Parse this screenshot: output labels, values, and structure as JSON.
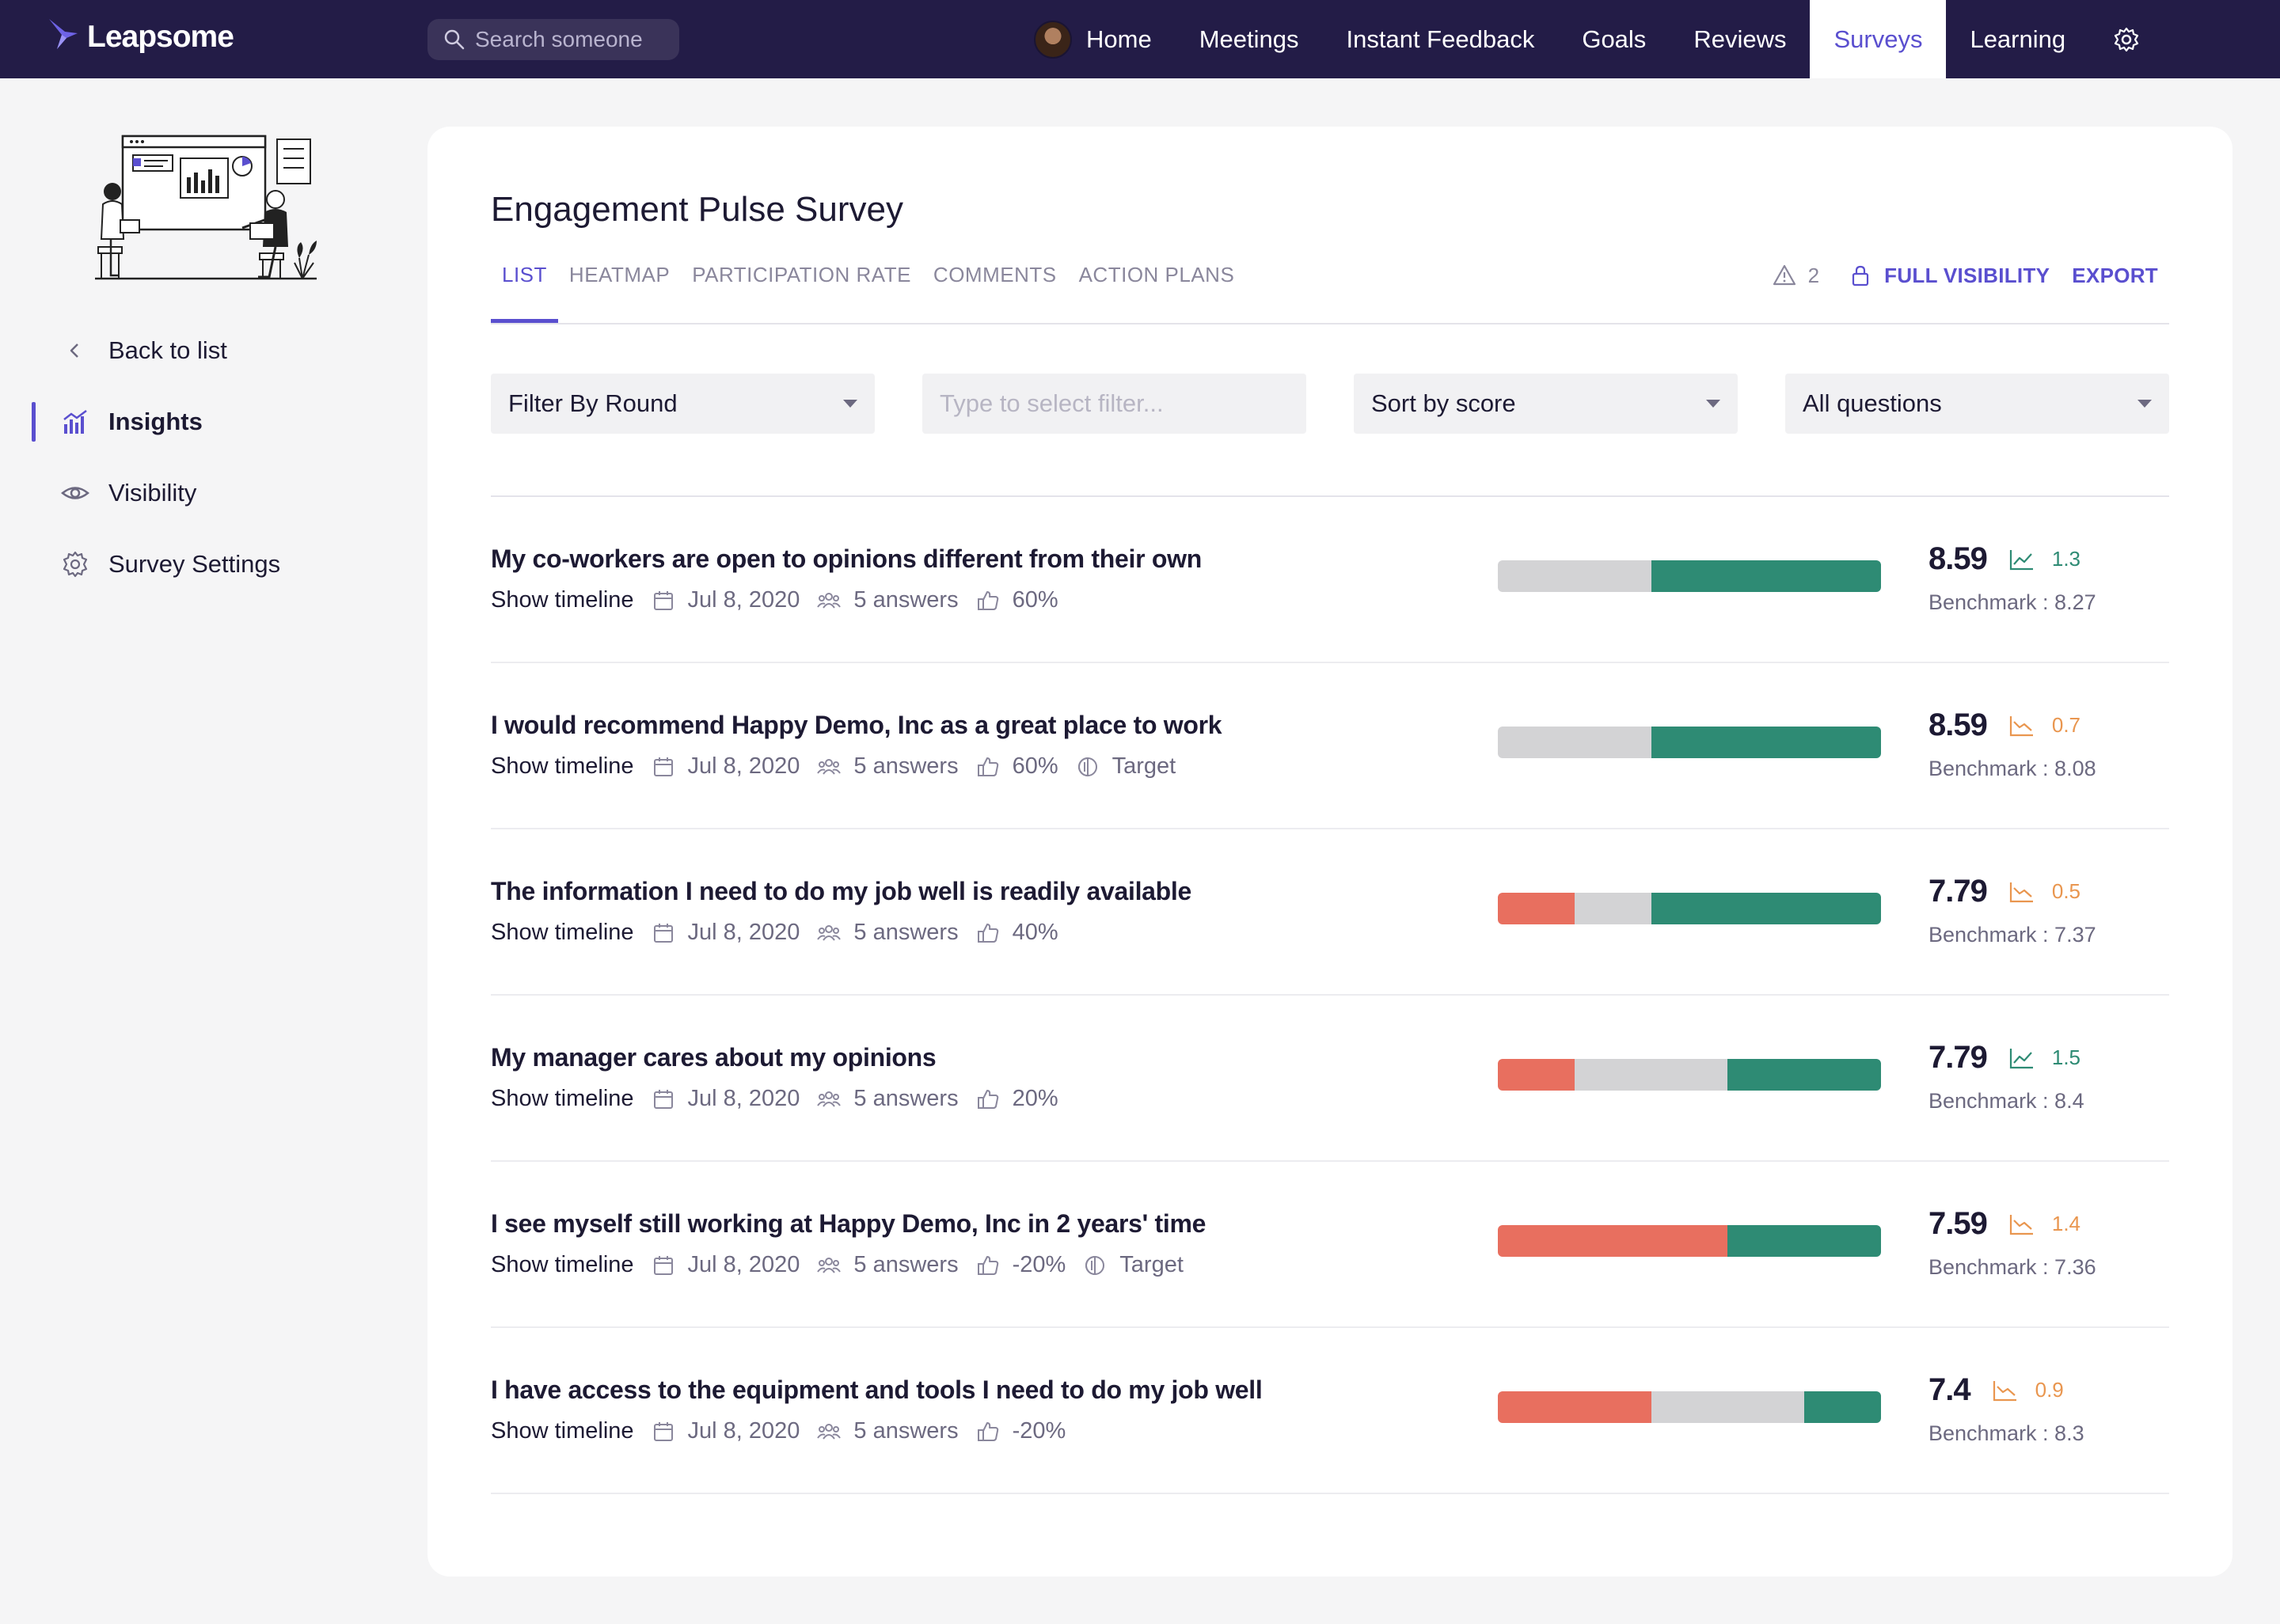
{
  "app": {
    "name": "Leapsome"
  },
  "search": {
    "placeholder": "Search someone"
  },
  "nav": {
    "items": [
      {
        "label": "Home",
        "active": false
      },
      {
        "label": "Meetings",
        "active": false
      },
      {
        "label": "Instant Feedback",
        "active": false
      },
      {
        "label": "Goals",
        "active": false
      },
      {
        "label": "Reviews",
        "active": false
      },
      {
        "label": "Surveys",
        "active": true
      },
      {
        "label": "Learning",
        "active": false
      }
    ]
  },
  "sidebar": {
    "items": [
      {
        "label": "Back to list",
        "icon": "chevron-left-icon"
      },
      {
        "label": "Insights",
        "icon": "chart-icon",
        "active": true
      },
      {
        "label": "Visibility",
        "icon": "eye-icon"
      },
      {
        "label": "Survey Settings",
        "icon": "gear-icon"
      }
    ]
  },
  "survey": {
    "title": "Engagement Pulse Survey",
    "tabs": [
      "LIST",
      "HEATMAP",
      "PARTICIPATION RATE",
      "COMMENTS",
      "ACTION PLANS"
    ],
    "active_tab": "LIST",
    "warnings": "2",
    "visibility_label": "FULL VISIBILITY",
    "export_label": "EXPORT"
  },
  "filters": {
    "round": "Filter By Round",
    "filter_placeholder": "Type to select filter...",
    "sort": "Sort by score",
    "questions": "All questions"
  },
  "questions": [
    {
      "title": "My co-workers are open to opinions different from their own",
      "show_timeline": "Show timeline",
      "date": "Jul 8, 2020",
      "answers": "5 answers",
      "favorable": "60%",
      "target": null,
      "distribution": {
        "negative": 0,
        "neutral": 40,
        "positive": 60
      },
      "score": "8.59",
      "trend": "up",
      "delta": "1.3",
      "benchmark": "Benchmark : 8.27"
    },
    {
      "title": "I would recommend Happy Demo, Inc as a great place to work",
      "show_timeline": "Show timeline",
      "date": "Jul 8, 2020",
      "answers": "5 answers",
      "favorable": "60%",
      "target": "Target",
      "distribution": {
        "negative": 0,
        "neutral": 40,
        "positive": 60
      },
      "score": "8.59",
      "trend": "down",
      "delta": "0.7",
      "benchmark": "Benchmark : 8.08"
    },
    {
      "title": "The information I need to do my job well is readily available",
      "show_timeline": "Show timeline",
      "date": "Jul 8, 2020",
      "answers": "5 answers",
      "favorable": "40%",
      "target": null,
      "distribution": {
        "negative": 20,
        "neutral": 20,
        "positive": 60
      },
      "score": "7.79",
      "trend": "down",
      "delta": "0.5",
      "benchmark": "Benchmark : 7.37"
    },
    {
      "title": "My manager cares about my opinions",
      "show_timeline": "Show timeline",
      "date": "Jul 8, 2020",
      "answers": "5 answers",
      "favorable": "20%",
      "target": null,
      "distribution": {
        "negative": 20,
        "neutral": 40,
        "positive": 40
      },
      "score": "7.79",
      "trend": "up",
      "delta": "1.5",
      "benchmark": "Benchmark : 8.4"
    },
    {
      "title": "I see myself still working at Happy Demo, Inc in 2 years' time",
      "show_timeline": "Show timeline",
      "date": "Jul 8, 2020",
      "answers": "5 answers",
      "favorable": "-20%",
      "target": "Target",
      "distribution": {
        "negative": 60,
        "neutral": 0,
        "positive": 40
      },
      "score": "7.59",
      "trend": "down",
      "delta": "1.4",
      "benchmark": "Benchmark : 7.36"
    },
    {
      "title": "I have access to the equipment and tools I need to do my job well",
      "show_timeline": "Show timeline",
      "date": "Jul 8, 2020",
      "answers": "5 answers",
      "favorable": "-20%",
      "target": null,
      "distribution": {
        "negative": 40,
        "neutral": 40,
        "positive": 20
      },
      "score": "7.4",
      "trend": "down",
      "delta": "0.9",
      "benchmark": "Benchmark : 8.3"
    }
  ],
  "colors": {
    "nav_bg": "#231c47",
    "accent": "#5a4fcf",
    "positive": "#2e8b74",
    "neutral": "#d3d3d5",
    "negative": "#e86f5f",
    "trend_up": "#2e8b74",
    "trend_down": "#e9964f"
  }
}
